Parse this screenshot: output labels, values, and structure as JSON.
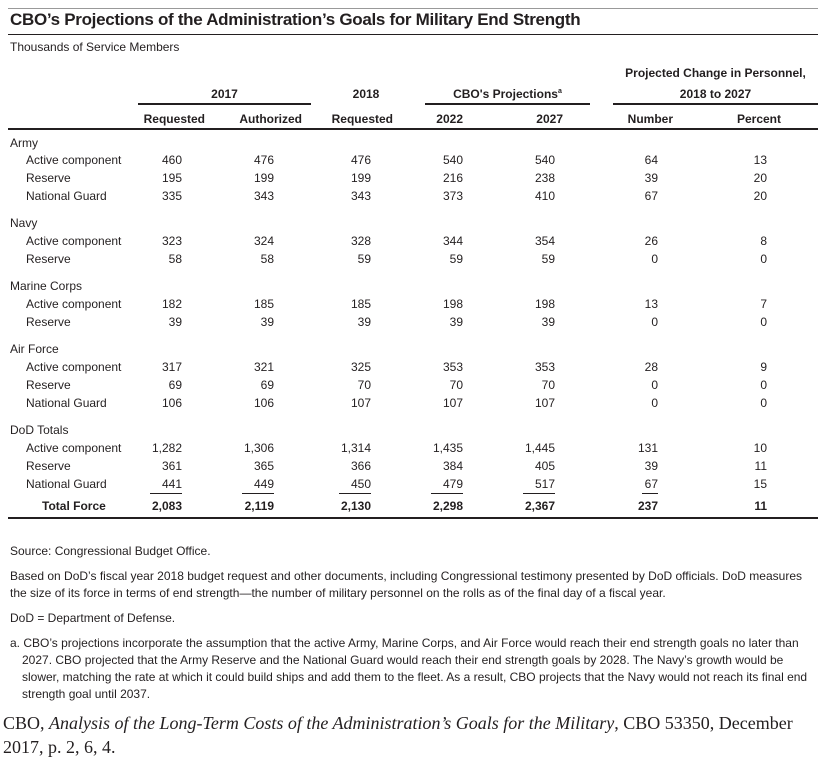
{
  "title": "CBO’s Projections of the Administration’s Goals for Military End Strength",
  "subtitle": "Thousands of Service Members",
  "headers": {
    "group_2017": "2017",
    "group_2018": "2018",
    "group_cbo": "CBO's Projections",
    "cbo_footnote_mark": "a",
    "group_change_1": "Projected Change in Personnel,",
    "group_change_2": "2018 to 2027",
    "columns": [
      "Requested",
      "Authorized",
      "Requested",
      "2022",
      "2027",
      "Number",
      "Percent"
    ]
  },
  "groups": [
    {
      "name": "Army",
      "rows": [
        {
          "label": "Active component",
          "values": [
            "460",
            "476",
            "476",
            "540",
            "540",
            "64",
            "13"
          ]
        },
        {
          "label": "Reserve",
          "values": [
            "195",
            "199",
            "199",
            "216",
            "238",
            "39",
            "20"
          ]
        },
        {
          "label": "National Guard",
          "values": [
            "335",
            "343",
            "343",
            "373",
            "410",
            "67",
            "20"
          ]
        }
      ]
    },
    {
      "name": "Navy",
      "rows": [
        {
          "label": "Active component",
          "values": [
            "323",
            "324",
            "328",
            "344",
            "354",
            "26",
            "8"
          ]
        },
        {
          "label": "Reserve",
          "values": [
            "58",
            "58",
            "59",
            "59",
            "59",
            "0",
            "0"
          ]
        }
      ]
    },
    {
      "name": "Marine Corps",
      "rows": [
        {
          "label": "Active component",
          "values": [
            "182",
            "185",
            "185",
            "198",
            "198",
            "13",
            "7"
          ]
        },
        {
          "label": "Reserve",
          "values": [
            "39",
            "39",
            "39",
            "39",
            "39",
            "0",
            "0"
          ]
        }
      ]
    },
    {
      "name": "Air Force",
      "rows": [
        {
          "label": "Active component",
          "values": [
            "317",
            "321",
            "325",
            "353",
            "353",
            "28",
            "9"
          ]
        },
        {
          "label": "Reserve",
          "values": [
            "69",
            "69",
            "70",
            "70",
            "70",
            "0",
            "0"
          ]
        },
        {
          "label": "National Guard",
          "values": [
            "106",
            "106",
            "107",
            "107",
            "107",
            "0",
            "0"
          ]
        }
      ]
    },
    {
      "name": "DoD Totals",
      "rows": [
        {
          "label": "Active component",
          "values": [
            "1,282",
            "1,306",
            "1,314",
            "1,435",
            "1,445",
            "131",
            "10"
          ]
        },
        {
          "label": "Reserve",
          "values": [
            "361",
            "365",
            "366",
            "384",
            "405",
            "39",
            "11"
          ]
        },
        {
          "label": "National Guard",
          "values": [
            "441",
            "449",
            "450",
            "479",
            "517",
            "67",
            "15"
          ]
        }
      ]
    }
  ],
  "total": {
    "label": "Total Force",
    "values": [
      "2,083",
      "2,119",
      "2,130",
      "2,298",
      "2,367",
      "237",
      "11"
    ]
  },
  "notes": {
    "source": "Source: Congressional Budget Office.",
    "basis": "Based on DoD’s fiscal year 2018 budget request and other documents, including Congressional testimony presented by DoD officials. DoD measures the size of its force in terms of end strength—the number of military personnel on the rolls as of the final day of a fiscal year.",
    "abbrev": "DoD = Department of Defense.",
    "footnote_a": "a. CBO’s projections incorporate the assumption that the active Army, Marine Corps, and Air Force would reach their end strength goals no later than 2027. CBO projected that the Army Reserve and the National Guard would reach their end strength goals by 2028. The Navy’s growth would be slower, matching the rate at which it could build ships and add them to the fleet. As a result, CBO projects that the Navy would not reach its final end strength goal until 2037."
  },
  "citation": {
    "prefix": "CBO, ",
    "italic": "Analysis of the Long-Term Costs of the Administration’s Goals for the Military",
    "suffix": ", CBO 53350, December 2017, p. 2, 6, 4."
  }
}
